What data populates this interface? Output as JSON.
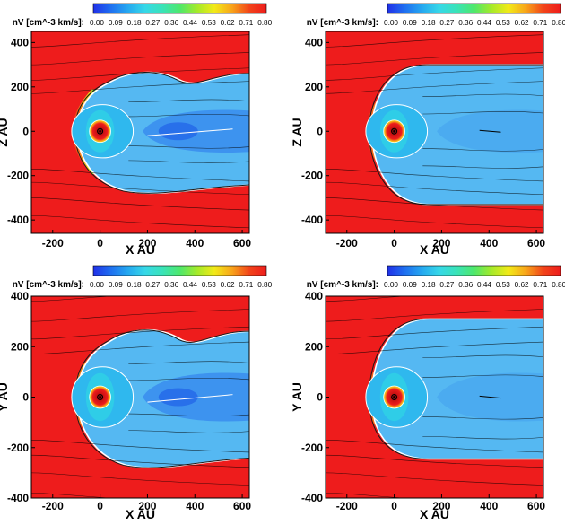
{
  "colorbar": {
    "label": "nV [cm^-3 km/s]:",
    "ticks": [
      "0.00",
      "0.09",
      "0.18",
      "0.27",
      "0.36",
      "0.44",
      "0.53",
      "0.62",
      "0.71",
      "0.80"
    ],
    "colors": [
      "#2030e8",
      "#1f6ff0",
      "#25a8f0",
      "#36d8e8",
      "#39e3b8",
      "#4ee86c",
      "#a4ea2a",
      "#f2ea18",
      "#f8a51a",
      "#f2451a",
      "#ee1c1c"
    ]
  },
  "colors": {
    "background_red": "#ee1c1c",
    "cavity_blue": "#55b8f2",
    "core_blue": "#2870ea",
    "inner_cyan": "#2fd6e4",
    "streamline": "#000000",
    "contour": "#ffffff"
  },
  "chart_data": [
    {
      "type": "heatmap",
      "panel": "top-left",
      "colorbar_label": "nV [cm^-3 km/s]:",
      "colorbar_range": [
        0.0,
        0.8
      ],
      "xlabel": "X AU",
      "ylabel": "Z AU",
      "xlim": [
        -290,
        630
      ],
      "ylim": [
        -460,
        450
      ],
      "xticks": [
        "-200",
        "0",
        "200",
        "400",
        "600"
      ],
      "yticks": [
        "400",
        "200",
        "0",
        "-200",
        "-400"
      ],
      "grid": false,
      "heliotail": "turbulent, disrupted"
    },
    {
      "type": "heatmap",
      "panel": "top-right",
      "colorbar_label": "nV [cm^-3 km/s]:",
      "colorbar_range": [
        0.0,
        0.8
      ],
      "xlabel": "X AU",
      "ylabel": "Z AU",
      "xlim": [
        -290,
        630
      ],
      "ylim": [
        -460,
        450
      ],
      "xticks": [
        "-200",
        "0",
        "200",
        "400",
        "600"
      ],
      "yticks": [
        "400",
        "200",
        "0",
        "-200",
        "-400"
      ],
      "grid": false,
      "heliotail": "smooth, laminar"
    },
    {
      "type": "heatmap",
      "panel": "bottom-left",
      "colorbar_label": "nV [cm^-3 km/s]:",
      "colorbar_range": [
        0.0,
        0.8
      ],
      "xlabel": "X AU",
      "ylabel": "Y AU",
      "xlim": [
        -290,
        630
      ],
      "ylim": [
        -400,
        400
      ],
      "xticks": [
        "-200",
        "0",
        "200",
        "400",
        "600"
      ],
      "yticks": [
        "400",
        "200",
        "0",
        "-200",
        "-400"
      ],
      "grid": false,
      "heliotail": "turbulent, disrupted"
    },
    {
      "type": "heatmap",
      "panel": "bottom-right",
      "colorbar_label": "nV [cm^-3 km/s]:",
      "colorbar_range": [
        0.0,
        0.8
      ],
      "xlabel": "X AU",
      "ylabel": "Y AU",
      "xlim": [
        -290,
        630
      ],
      "ylim": [
        -400,
        400
      ],
      "xticks": [
        "-200",
        "0",
        "200",
        "400",
        "600"
      ],
      "yticks": [
        "400",
        "200",
        "0",
        "-200",
        "-400"
      ],
      "grid": false,
      "heliotail": "smooth, laminar"
    }
  ]
}
